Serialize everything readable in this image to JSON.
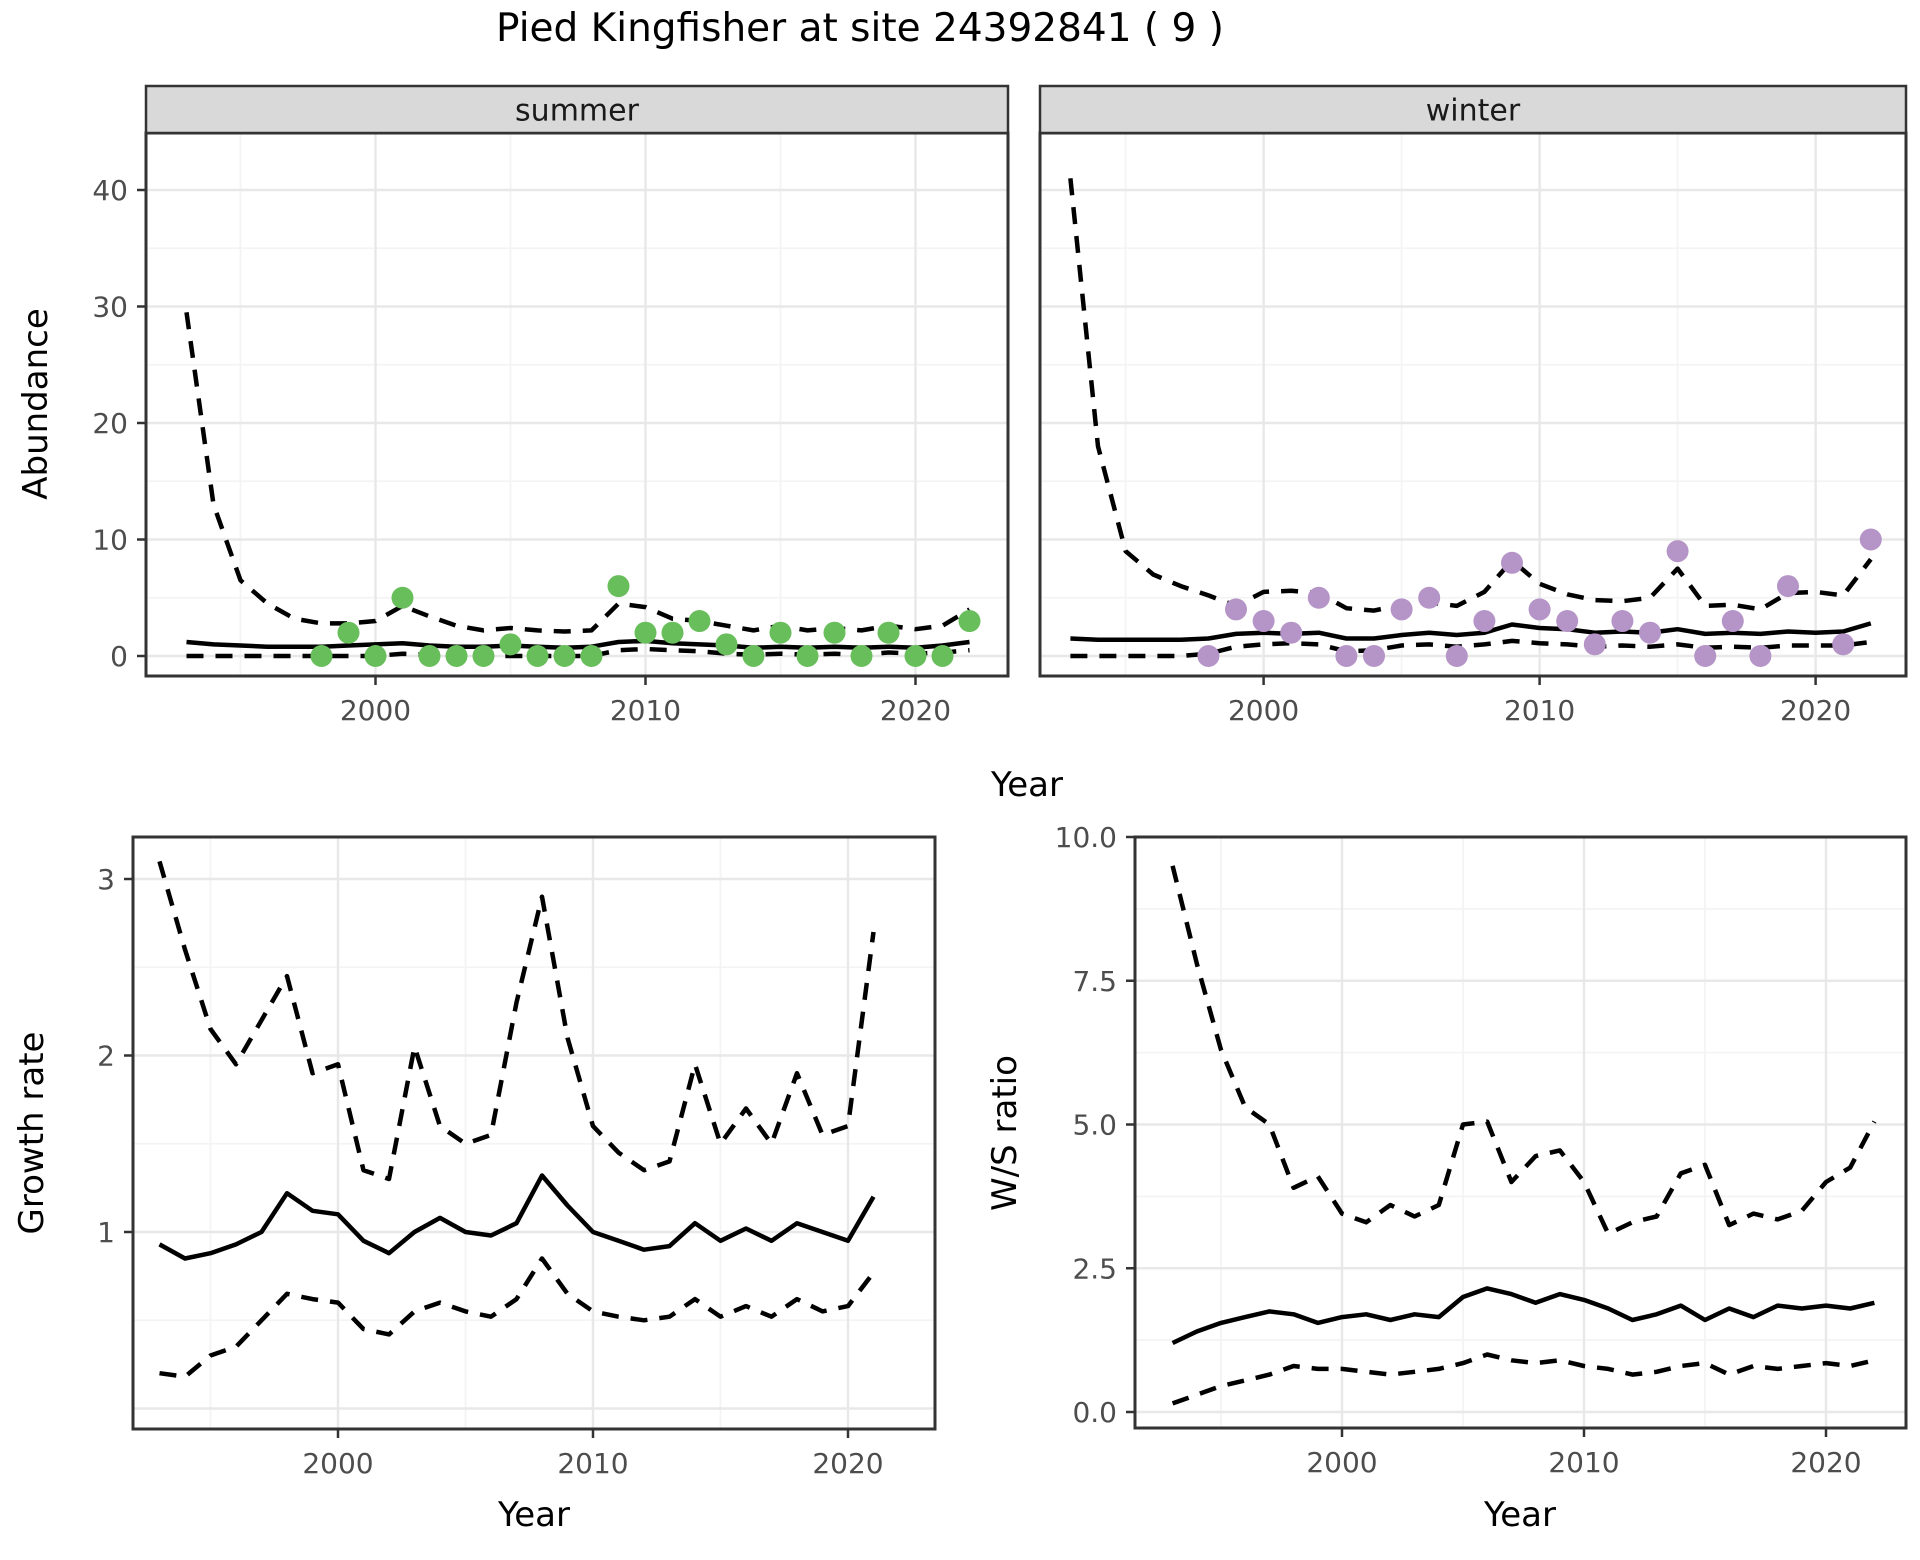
{
  "title": "Pied Kingfisher at site 24392841 ( 9 )",
  "labels": {
    "abundance": "Abundance",
    "growth_rate": "Growth rate",
    "ws_ratio": "W/S ratio",
    "year_top": "Year",
    "year_growth": "Year",
    "year_ws": "Year"
  },
  "colors": {
    "summer_point": "#69BE5C",
    "winter_point": "#B594C7",
    "line": "#000000",
    "grid_major": "#E8E8E8",
    "grid_minor": "#F4F4F4",
    "frame": "#333333",
    "strip_bg": "#D9D9D9",
    "strip_text": "#1A1A1A",
    "tick_label": "#4D4D4D"
  },
  "chart_data": [
    {
      "id": "summer",
      "type": "line",
      "facet_label": "summer",
      "xlabel": "Year",
      "ylabel": "Abundance",
      "xlim": [
        1991.9,
        2023.4
      ],
      "ylim": [
        -1.7,
        44.9
      ],
      "grid": true,
      "legend": "none",
      "x_ticks": [
        2000,
        2010,
        2020
      ],
      "x_tick_labels": [
        "2000",
        "2010",
        "2020"
      ],
      "x_minor": [
        1995,
        2005,
        2015
      ],
      "y_ticks": [
        0,
        10,
        20,
        30,
        40
      ],
      "y_tick_labels": [
        "0",
        "10",
        "20",
        "30",
        "40"
      ],
      "y_minor": [
        5,
        15,
        25,
        35
      ],
      "series": {
        "years": [
          1993,
          1994,
          1995,
          1996,
          1997,
          1998,
          1999,
          2000,
          2001,
          2002,
          2003,
          2004,
          2005,
          2006,
          2007,
          2008,
          2009,
          2010,
          2011,
          2012,
          2013,
          2014,
          2015,
          2016,
          2017,
          2018,
          2019,
          2020,
          2021,
          2022
        ],
        "median": [
          1.2,
          1.0,
          0.9,
          0.8,
          0.8,
          0.8,
          0.9,
          1.0,
          1.1,
          0.9,
          0.8,
          0.8,
          0.9,
          0.8,
          0.7,
          0.8,
          1.2,
          1.3,
          1.1,
          1.0,
          0.9,
          0.7,
          0.8,
          0.7,
          0.8,
          0.7,
          0.8,
          0.7,
          0.9,
          1.2
        ],
        "ci_upper": [
          29.5,
          13,
          6.5,
          4.5,
          3.2,
          2.8,
          2.8,
          3.0,
          4.3,
          3.4,
          2.6,
          2.2,
          2.4,
          2.2,
          2.1,
          2.2,
          4.5,
          4.2,
          3.2,
          3.0,
          2.6,
          2.2,
          2.6,
          2.2,
          2.4,
          2.2,
          2.6,
          2.3,
          2.6,
          4.0
        ],
        "ci_lower": [
          0,
          0,
          0,
          0,
          0,
          0,
          0,
          0,
          0.2,
          0.1,
          0,
          0,
          0,
          0,
          0,
          0,
          0.5,
          0.6,
          0.5,
          0.4,
          0.2,
          0.1,
          0.2,
          0.1,
          0.2,
          0.1,
          0.3,
          0.2,
          0.3,
          0.5
        ]
      },
      "points": {
        "years": [
          1998,
          1999,
          2000,
          2001,
          2002,
          2003,
          2004,
          2005,
          2006,
          2007,
          2008,
          2009,
          2010,
          2011,
          2012,
          2013,
          2014,
          2015,
          2016,
          2017,
          2018,
          2019,
          2020,
          2021,
          2022
        ],
        "values": [
          0,
          2,
          0,
          5,
          0,
          0,
          0,
          1,
          0,
          0,
          0,
          6,
          2,
          2,
          3,
          1,
          0,
          2,
          0,
          2,
          0,
          2,
          0,
          0,
          3
        ]
      },
      "point_color": "#69BE5C"
    },
    {
      "id": "winter",
      "type": "line",
      "facet_label": "winter",
      "xlabel": "Year",
      "ylabel": "Abundance",
      "xlim": [
        1991.9,
        2023.3
      ],
      "ylim": [
        -1.7,
        44.9
      ],
      "grid": true,
      "legend": "none",
      "x_ticks": [
        2000,
        2010,
        2020
      ],
      "x_tick_labels": [
        "2000",
        "2010",
        "2020"
      ],
      "x_minor": [
        1995,
        2005,
        2015
      ],
      "y_ticks": [
        0,
        10,
        20,
        30,
        40
      ],
      "y_minor": [
        5,
        15,
        25,
        35
      ],
      "series": {
        "years": [
          1993,
          1994,
          1995,
          1996,
          1997,
          1998,
          1999,
          2000,
          2001,
          2002,
          2003,
          2004,
          2005,
          2006,
          2007,
          2008,
          2009,
          2010,
          2011,
          2012,
          2013,
          2014,
          2015,
          2016,
          2017,
          2018,
          2019,
          2020,
          2021,
          2022
        ],
        "median": [
          1.5,
          1.4,
          1.4,
          1.4,
          1.4,
          1.5,
          1.9,
          2.0,
          1.9,
          2.0,
          1.5,
          1.5,
          1.8,
          2.0,
          1.8,
          2.0,
          2.7,
          2.4,
          2.3,
          2.0,
          2.1,
          2.0,
          2.3,
          1.9,
          2.0,
          1.9,
          2.1,
          2.0,
          2.1,
          2.8
        ],
        "ci_upper": [
          41,
          18,
          9,
          7,
          6,
          5.2,
          4.3,
          5.5,
          5.6,
          5.4,
          4.1,
          3.9,
          4.4,
          4.6,
          4.3,
          5.5,
          8.2,
          6.2,
          5.3,
          4.8,
          4.7,
          5.0,
          7.5,
          4.3,
          4.4,
          4.0,
          5.4,
          5.5,
          5.2,
          8.3
        ],
        "ci_lower": [
          0,
          0,
          0,
          0,
          0,
          0.2,
          0.8,
          1.0,
          1.1,
          1.0,
          0.4,
          0.5,
          0.9,
          1.0,
          0.8,
          1.0,
          1.3,
          1.1,
          1.0,
          0.8,
          0.9,
          0.8,
          1.0,
          0.7,
          0.8,
          0.7,
          0.9,
          0.9,
          0.9,
          1.2
        ]
      },
      "points": {
        "years": [
          1998,
          1999,
          2000,
          2001,
          2002,
          2003,
          2004,
          2005,
          2006,
          2007,
          2008,
          2009,
          2010,
          2011,
          2012,
          2013,
          2014,
          2015,
          2016,
          2017,
          2018,
          2019,
          2020,
          2021,
          2022
        ],
        "values": [
          0,
          4,
          3,
          2,
          5,
          0,
          0,
          4,
          5,
          0,
          3,
          8,
          4,
          3,
          1,
          3,
          2,
          9,
          0,
          3,
          0,
          6,
          null,
          1,
          10
        ]
      },
      "point_color": "#B594C7"
    },
    {
      "id": "growth",
      "type": "line",
      "xlabel": "Year",
      "ylabel": "Growth rate",
      "xlim": [
        1992.0,
        2023.4
      ],
      "ylim": [
        -0.12,
        3.24
      ],
      "grid": true,
      "legend": "none",
      "x_ticks": [
        2000,
        2010,
        2020
      ],
      "x_tick_labels": [
        "2000",
        "2010",
        "2020"
      ],
      "x_minor": [
        1995,
        2005,
        2015
      ],
      "y_ticks": [
        0,
        1,
        2,
        3
      ],
      "y_tick_labels": [
        "",
        "1",
        "2",
        "3"
      ],
      "y_minor": [
        0.5,
        1.5,
        2.5
      ],
      "series": {
        "years": [
          1993,
          1994,
          1995,
          1996,
          1997,
          1998,
          1999,
          2000,
          2001,
          2002,
          2003,
          2004,
          2005,
          2006,
          2007,
          2008,
          2009,
          2010,
          2011,
          2012,
          2013,
          2014,
          2015,
          2016,
          2017,
          2018,
          2019,
          2020,
          2021
        ],
        "median": [
          0.93,
          0.85,
          0.88,
          0.93,
          1.0,
          1.22,
          1.12,
          1.1,
          0.95,
          0.88,
          1.0,
          1.08,
          1.0,
          0.98,
          1.05,
          1.32,
          1.15,
          1.0,
          0.95,
          0.9,
          0.92,
          1.05,
          0.95,
          1.02,
          0.95,
          1.05,
          1.0,
          0.95,
          1.2
        ],
        "ci_upper": [
          3.1,
          2.6,
          2.15,
          1.95,
          2.2,
          2.45,
          1.9,
          1.95,
          1.35,
          1.3,
          2.05,
          1.6,
          1.5,
          1.55,
          2.3,
          2.9,
          2.1,
          1.6,
          1.45,
          1.35,
          1.4,
          1.95,
          1.5,
          1.7,
          1.5,
          1.9,
          1.55,
          1.6,
          2.7
        ],
        "ci_lower": [
          0.2,
          0.18,
          0.3,
          0.35,
          0.5,
          0.65,
          0.62,
          0.6,
          0.45,
          0.42,
          0.55,
          0.6,
          0.55,
          0.52,
          0.62,
          0.85,
          0.65,
          0.55,
          0.52,
          0.5,
          0.52,
          0.62,
          0.52,
          0.58,
          0.52,
          0.62,
          0.55,
          0.58,
          0.77
        ]
      },
      "point_color": null
    },
    {
      "id": "ws",
      "type": "line",
      "xlabel": "Year",
      "ylabel": "W/S ratio",
      "xlim": [
        1991.4,
        2023.3
      ],
      "ylim": [
        -0.28,
        10.3
      ],
      "grid": true,
      "legend": "none",
      "x_ticks": [
        2000,
        2010,
        2020
      ],
      "x_tick_labels": [
        "2000",
        "2010",
        "2020"
      ],
      "x_minor": [
        1995,
        2005,
        2015
      ],
      "y_ticks": [
        0,
        2.5,
        5,
        7.5,
        10
      ],
      "y_tick_labels": [
        "0.0",
        "2.5",
        "5.0",
        "7.5",
        "10.0"
      ],
      "y_minor": [
        1.25,
        3.75,
        6.25,
        8.75
      ],
      "series": {
        "years": [
          1993,
          1994,
          1995,
          1996,
          1997,
          1998,
          1999,
          2000,
          2001,
          2002,
          2003,
          2004,
          2005,
          2006,
          2007,
          2008,
          2009,
          2010,
          2011,
          2012,
          2013,
          2014,
          2015,
          2016,
          2017,
          2018,
          2019,
          2020,
          2021,
          2022
        ],
        "median": [
          1.2,
          1.4,
          1.55,
          1.65,
          1.75,
          1.7,
          1.55,
          1.65,
          1.7,
          1.6,
          1.7,
          1.65,
          2.0,
          2.15,
          2.05,
          1.9,
          2.05,
          1.95,
          1.8,
          1.6,
          1.7,
          1.85,
          1.6,
          1.8,
          1.65,
          1.85,
          1.8,
          1.85,
          1.8,
          1.9
        ],
        "ci_upper": [
          9.5,
          7.8,
          6.3,
          5.3,
          5.0,
          3.9,
          4.1,
          3.45,
          3.3,
          3.6,
          3.4,
          3.6,
          5.0,
          5.05,
          4.0,
          4.45,
          4.55,
          4.0,
          3.1,
          3.3,
          3.4,
          4.15,
          4.3,
          3.25,
          3.45,
          3.35,
          3.5,
          4.0,
          4.25,
          5.05
        ],
        "ci_lower": [
          0.15,
          0.3,
          0.45,
          0.55,
          0.65,
          0.8,
          0.75,
          0.75,
          0.7,
          0.65,
          0.7,
          0.75,
          0.85,
          1.0,
          0.9,
          0.85,
          0.9,
          0.8,
          0.75,
          0.65,
          0.7,
          0.8,
          0.85,
          0.65,
          0.8,
          0.75,
          0.8,
          0.85,
          0.8,
          0.9
        ]
      },
      "point_color": null
    }
  ]
}
